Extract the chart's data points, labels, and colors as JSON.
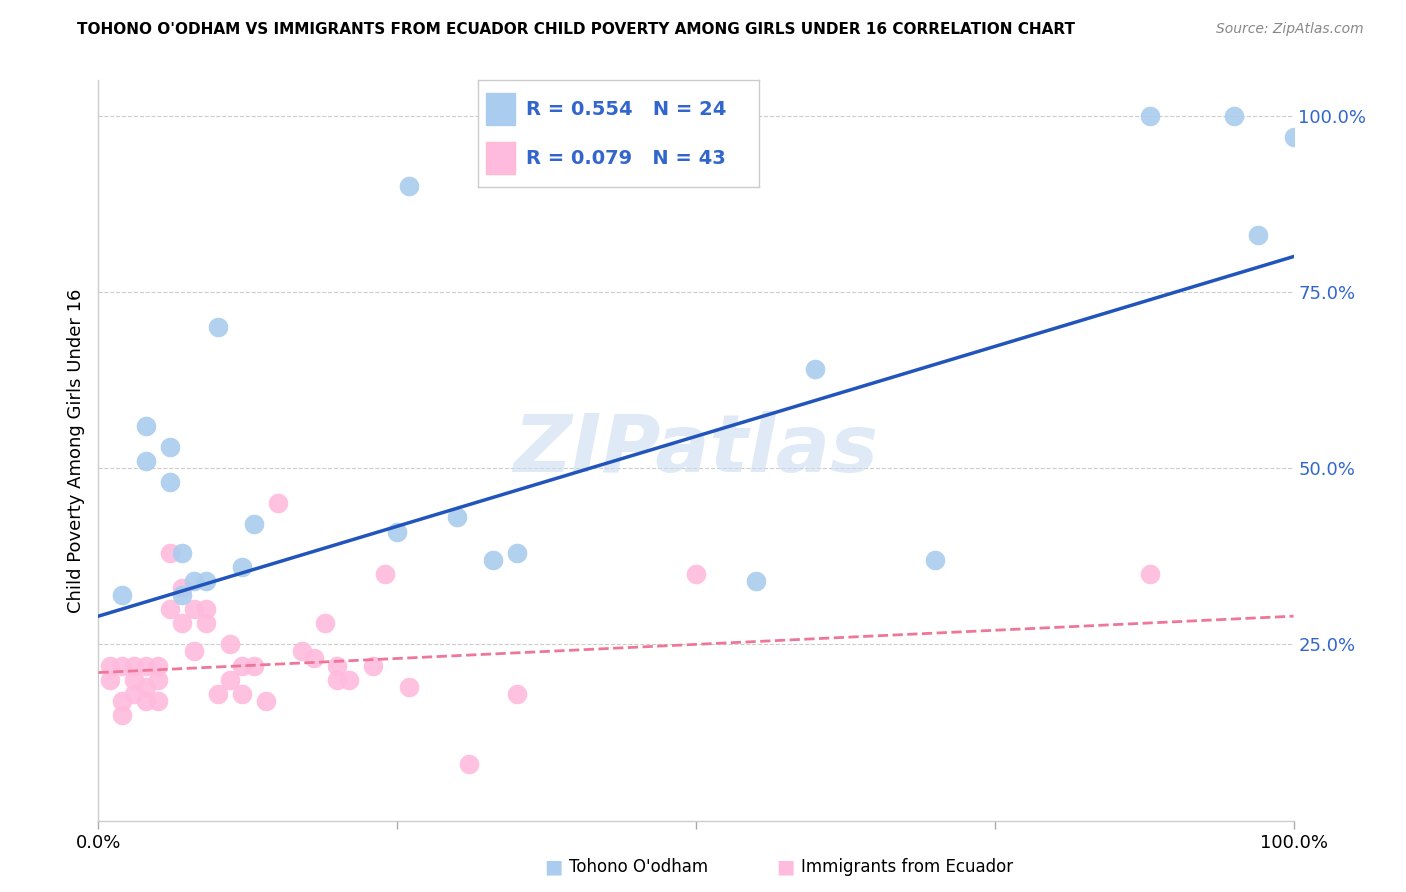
{
  "title": "TOHONO O'ODHAM VS IMMIGRANTS FROM ECUADOR CHILD POVERTY AMONG GIRLS UNDER 16 CORRELATION CHART",
  "source": "Source: ZipAtlas.com",
  "ylabel": "Child Poverty Among Girls Under 16",
  "xlim": [
    0,
    1.0
  ],
  "ylim": [
    0,
    1.05
  ],
  "xticks": [
    0.0,
    0.25,
    0.5,
    0.75,
    1.0
  ],
  "xticklabels": [
    "0.0%",
    "",
    "",
    "",
    "100.0%"
  ],
  "yticks": [
    0.25,
    0.5,
    0.75,
    1.0
  ],
  "yticklabels": [
    "25.0%",
    "50.0%",
    "75.0%",
    "100.0%"
  ],
  "grid_color": "#cccccc",
  "background_color": "#ffffff",
  "series1_label": "Tohono O'odham",
  "series2_label": "Immigrants from Ecuador",
  "series1_color": "#aaccee",
  "series2_color": "#ffbbdd",
  "series1_R": 0.554,
  "series1_N": 24,
  "series2_R": 0.079,
  "series2_N": 43,
  "legend_text_color": "#3366cc",
  "series1_x": [
    0.02,
    0.04,
    0.04,
    0.06,
    0.06,
    0.07,
    0.07,
    0.08,
    0.09,
    0.1,
    0.12,
    0.13,
    0.25,
    0.26,
    0.3,
    0.33,
    0.35,
    0.55,
    0.6,
    0.7,
    0.88,
    0.95,
    0.97,
    1.0
  ],
  "series1_y": [
    0.32,
    0.56,
    0.51,
    0.53,
    0.48,
    0.38,
    0.32,
    0.34,
    0.34,
    0.7,
    0.36,
    0.42,
    0.41,
    0.9,
    0.43,
    0.37,
    0.38,
    0.34,
    0.64,
    0.37,
    1.0,
    1.0,
    0.83,
    0.97
  ],
  "series2_x": [
    0.01,
    0.01,
    0.02,
    0.02,
    0.02,
    0.03,
    0.03,
    0.03,
    0.04,
    0.04,
    0.04,
    0.05,
    0.05,
    0.05,
    0.06,
    0.06,
    0.07,
    0.07,
    0.08,
    0.08,
    0.09,
    0.09,
    0.1,
    0.11,
    0.11,
    0.12,
    0.12,
    0.13,
    0.14,
    0.15,
    0.17,
    0.18,
    0.19,
    0.2,
    0.2,
    0.21,
    0.23,
    0.24,
    0.26,
    0.31,
    0.35,
    0.5,
    0.88
  ],
  "series2_y": [
    0.2,
    0.22,
    0.15,
    0.17,
    0.22,
    0.18,
    0.2,
    0.22,
    0.17,
    0.19,
    0.22,
    0.22,
    0.2,
    0.17,
    0.38,
    0.3,
    0.33,
    0.28,
    0.3,
    0.24,
    0.28,
    0.3,
    0.18,
    0.2,
    0.25,
    0.22,
    0.18,
    0.22,
    0.17,
    0.45,
    0.24,
    0.23,
    0.28,
    0.2,
    0.22,
    0.2,
    0.22,
    0.35,
    0.19,
    0.08,
    0.18,
    0.35,
    0.35
  ],
  "line1_color": "#2255bb",
  "line2_color": "#ee7799",
  "line1_x": [
    0.0,
    1.0
  ],
  "line1_y": [
    0.29,
    0.8
  ],
  "line2_x": [
    0.0,
    1.0
  ],
  "line2_y": [
    0.21,
    0.29
  ]
}
